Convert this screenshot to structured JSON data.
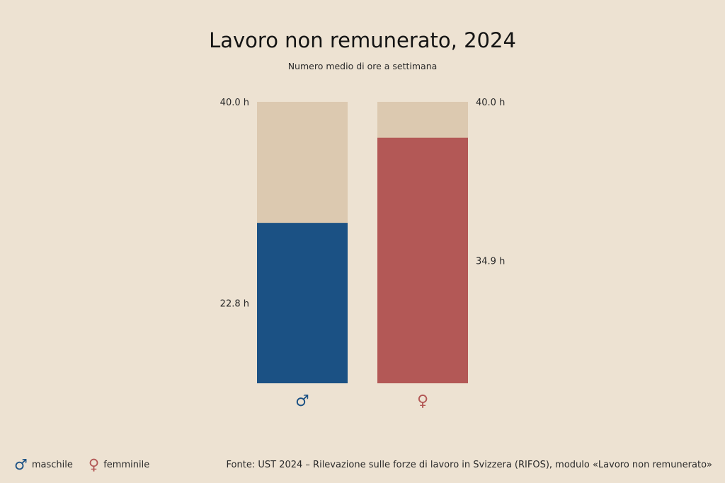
{
  "title": "Lavoro non remunerato, 2024",
  "subtitle": "Numero medio di ore a settimana",
  "colors": {
    "background": "#ede2d2",
    "total": "#dcc9b0",
    "male": "#1b5184",
    "female": "#b35856"
  },
  "chart_data": {
    "type": "bar",
    "stacked": false,
    "categories": [
      "♂",
      "♀"
    ],
    "series": [
      {
        "name": "",
        "values": [
          40.0,
          40.0
        ],
        "labels": [
          "40.0 h",
          "40.0 h"
        ]
      },
      {
        "name": "",
        "values": [
          22.8,
          34.9
        ],
        "labels": [
          "22.8 h",
          "34.9 h"
        ]
      }
    ],
    "ylim": [
      0,
      40
    ],
    "xlabel": "",
    "ylabel": "",
    "grid": false
  },
  "legend": {
    "items": [
      {
        "symbol": "♂",
        "label": "maschile"
      },
      {
        "symbol": "♀",
        "label": "femminile"
      }
    ]
  },
  "source": "Fonte: UST 2024 – Rilevazione sulle forze di lavoro in Svizzera (RIFOS), modulo «Lavoro non remunerato»"
}
